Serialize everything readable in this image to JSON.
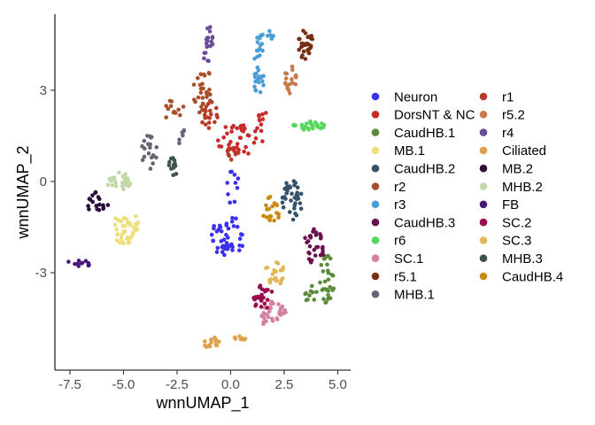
{
  "chart_data": {
    "type": "scatter",
    "xlabel": "wnnUMAP_1",
    "ylabel": "wnnUMAP_2",
    "xlim": [
      -8.2,
      5.6
    ],
    "ylim": [
      -6.2,
      5.5
    ],
    "xticks": [
      {
        "value": -7.5,
        "label": "-7.5"
      },
      {
        "value": -5.0,
        "label": "-5.0"
      },
      {
        "value": -2.5,
        "label": "-2.5"
      },
      {
        "value": 0.0,
        "label": "0.0"
      },
      {
        "value": 2.5,
        "label": "2.5"
      },
      {
        "value": 5.0,
        "label": "5.0"
      }
    ],
    "yticks": [
      {
        "value": 3,
        "label": "3"
      },
      {
        "value": 0,
        "label": "0"
      },
      {
        "value": -3,
        "label": "-3"
      }
    ],
    "grid": false,
    "legend": "right",
    "series": [
      {
        "name": "Neuron",
        "color": "#3b2ff0",
        "clusters": [
          {
            "cx": -0.1,
            "cy": -1.8,
            "rx": 0.8,
            "ry": 0.7,
            "n": 45
          },
          {
            "cx": 0.1,
            "cy": -0.2,
            "rx": 0.3,
            "ry": 0.6,
            "n": 10
          }
        ]
      },
      {
        "name": "DorsNT & NC",
        "color": "#c92a2a",
        "clusters": [
          {
            "cx": 0.5,
            "cy": 1.4,
            "rx": 1.2,
            "ry": 0.5,
            "n": 40
          },
          {
            "cx": 1.5,
            "cy": 2.1,
            "rx": 0.3,
            "ry": 0.3,
            "n": 8
          }
        ]
      },
      {
        "name": "CaudHB.1",
        "color": "#5a8a3a",
        "clusters": [
          {
            "cx": 4.5,
            "cy": -3.2,
            "rx": 0.35,
            "ry": 0.8,
            "n": 30
          },
          {
            "cx": 3.8,
            "cy": -3.7,
            "rx": 0.4,
            "ry": 0.3,
            "n": 10
          }
        ]
      },
      {
        "name": "MB.1",
        "color": "#ede07a",
        "clusters": [
          {
            "cx": -4.9,
            "cy": -1.5,
            "rx": 0.6,
            "ry": 0.6,
            "n": 40
          }
        ]
      },
      {
        "name": "CaudHB.2",
        "color": "#34536b",
        "clusters": [
          {
            "cx": 2.9,
            "cy": -0.6,
            "rx": 0.5,
            "ry": 0.7,
            "n": 35
          }
        ]
      },
      {
        "name": "r2",
        "color": "#a84f2a",
        "clusters": [
          {
            "cx": -1.3,
            "cy": 3.0,
            "rx": 0.5,
            "ry": 0.8,
            "n": 30
          },
          {
            "cx": -2.6,
            "cy": 2.3,
            "rx": 0.5,
            "ry": 0.4,
            "n": 12
          }
        ]
      },
      {
        "name": "r3",
        "color": "#4a9ed8",
        "clusters": [
          {
            "cx": 1.3,
            "cy": 3.8,
            "rx": 0.3,
            "ry": 1.0,
            "n": 30
          },
          {
            "cx": 1.7,
            "cy": 4.8,
            "rx": 0.3,
            "ry": 0.2,
            "n": 8
          }
        ]
      },
      {
        "name": "CaudHB.3",
        "color": "#6b1050",
        "clusters": [
          {
            "cx": 3.9,
            "cy": -2.1,
            "rx": 0.5,
            "ry": 0.6,
            "n": 30
          }
        ]
      },
      {
        "name": "r6",
        "color": "#55d85a",
        "clusters": [
          {
            "cx": 3.7,
            "cy": 1.9,
            "rx": 0.8,
            "ry": 0.25,
            "n": 25
          }
        ]
      },
      {
        "name": "SC.1",
        "color": "#d282a0",
        "clusters": [
          {
            "cx": 2.0,
            "cy": -4.4,
            "rx": 0.6,
            "ry": 0.5,
            "n": 30
          }
        ]
      },
      {
        "name": "r5.1",
        "color": "#7a2e14",
        "clusters": [
          {
            "cx": 3.5,
            "cy": 4.5,
            "rx": 0.4,
            "ry": 0.5,
            "n": 30
          }
        ]
      },
      {
        "name": "MHB.1",
        "color": "#6b6275",
        "clusters": [
          {
            "cx": -3.8,
            "cy": 1.0,
            "rx": 0.4,
            "ry": 0.6,
            "n": 20
          },
          {
            "cx": -2.3,
            "cy": 1.5,
            "rx": 0.2,
            "ry": 0.3,
            "n": 6
          }
        ]
      },
      {
        "name": "r1",
        "color": "#b83a28",
        "clusters": [
          {
            "cx": -1.0,
            "cy": 2.2,
            "rx": 0.4,
            "ry": 0.5,
            "n": 18
          },
          {
            "cx": 0.1,
            "cy": 1.0,
            "rx": 0.3,
            "ry": 0.3,
            "n": 8
          }
        ]
      },
      {
        "name": "r5.2",
        "color": "#c97a4a",
        "clusters": [
          {
            "cx": 2.8,
            "cy": 3.3,
            "rx": 0.3,
            "ry": 0.5,
            "n": 20
          }
        ]
      },
      {
        "name": "r4",
        "color": "#6a4c98",
        "clusters": [
          {
            "cx": -1.0,
            "cy": 4.7,
            "rx": 0.2,
            "ry": 0.4,
            "n": 15
          },
          {
            "cx": -1.1,
            "cy": 4.1,
            "rx": 0.2,
            "ry": 0.2,
            "n": 5
          }
        ]
      },
      {
        "name": "Ciliated",
        "color": "#e09f4a",
        "clusters": [
          {
            "cx": -0.9,
            "cy": -5.3,
            "rx": 0.4,
            "ry": 0.2,
            "n": 15
          },
          {
            "cx": 0.4,
            "cy": -5.2,
            "rx": 0.3,
            "ry": 0.12,
            "n": 8
          }
        ]
      },
      {
        "name": "MB.2",
        "color": "#2a0d3a",
        "clusters": [
          {
            "cx": -6.2,
            "cy": -0.7,
            "rx": 0.5,
            "ry": 0.4,
            "n": 20
          }
        ]
      },
      {
        "name": "MHB.2",
        "color": "#c2d8a8",
        "clusters": [
          {
            "cx": -5.2,
            "cy": 0.0,
            "rx": 0.6,
            "ry": 0.3,
            "n": 25
          }
        ]
      },
      {
        "name": "FB",
        "color": "#4a1878",
        "clusters": [
          {
            "cx": -7.1,
            "cy": -2.7,
            "rx": 0.6,
            "ry": 0.15,
            "n": 12
          }
        ]
      },
      {
        "name": "SC.2",
        "color": "#9a0a4c",
        "clusters": [
          {
            "cx": 1.5,
            "cy": -3.8,
            "rx": 0.5,
            "ry": 0.4,
            "n": 25
          }
        ]
      },
      {
        "name": "SC.3",
        "color": "#e0b858",
        "clusters": [
          {
            "cx": 2.0,
            "cy": -3.0,
            "rx": 0.5,
            "ry": 0.5,
            "n": 25
          }
        ]
      },
      {
        "name": "MHB.3",
        "color": "#3e5448",
        "clusters": [
          {
            "cx": -2.7,
            "cy": 0.5,
            "rx": 0.3,
            "ry": 0.3,
            "n": 12
          }
        ]
      },
      {
        "name": "CaudHB.4",
        "color": "#c98a10",
        "clusters": [
          {
            "cx": 1.9,
            "cy": -1.0,
            "rx": 0.4,
            "ry": 0.5,
            "n": 20
          }
        ]
      }
    ]
  }
}
